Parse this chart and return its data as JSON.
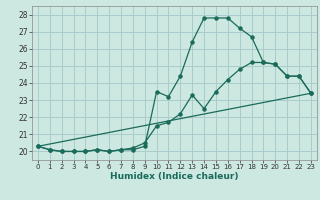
{
  "xlabel": "Humidex (Indice chaleur)",
  "background_color": "#cce8e0",
  "grid_color": "#aacccc",
  "line_color": "#1a6b5a",
  "xlim": [
    -0.5,
    23.5
  ],
  "ylim": [
    19.5,
    28.5
  ],
  "xticks": [
    0,
    1,
    2,
    3,
    4,
    5,
    6,
    7,
    8,
    9,
    10,
    11,
    12,
    13,
    14,
    15,
    16,
    17,
    18,
    19,
    20,
    21,
    22,
    23
  ],
  "yticks": [
    20,
    21,
    22,
    23,
    24,
    25,
    26,
    27,
    28
  ],
  "line1_x": [
    0,
    1,
    2,
    3,
    4,
    5,
    6,
    7,
    8,
    9,
    10,
    11,
    12,
    13,
    14,
    15,
    16,
    17,
    18,
    19,
    20,
    21,
    22,
    23
  ],
  "line1_y": [
    20.3,
    20.1,
    20.0,
    20.0,
    20.0,
    20.1,
    20.0,
    20.1,
    20.1,
    20.3,
    23.5,
    23.2,
    24.4,
    26.4,
    27.8,
    27.8,
    27.8,
    27.2,
    26.7,
    25.2,
    25.1,
    24.4,
    24.4,
    23.4
  ],
  "line2_x": [
    0,
    1,
    2,
    3,
    4,
    5,
    6,
    7,
    8,
    9,
    10,
    11,
    12,
    13,
    14,
    15,
    16,
    17,
    18,
    19,
    20,
    21,
    22,
    23
  ],
  "line2_y": [
    20.3,
    20.1,
    20.0,
    20.0,
    20.0,
    20.1,
    20.0,
    20.1,
    20.2,
    20.5,
    21.5,
    21.7,
    22.2,
    23.3,
    22.5,
    23.5,
    24.2,
    24.8,
    25.2,
    25.2,
    25.1,
    24.4,
    24.4,
    23.4
  ],
  "line3_x": [
    0,
    23
  ],
  "line3_y": [
    20.3,
    23.4
  ]
}
